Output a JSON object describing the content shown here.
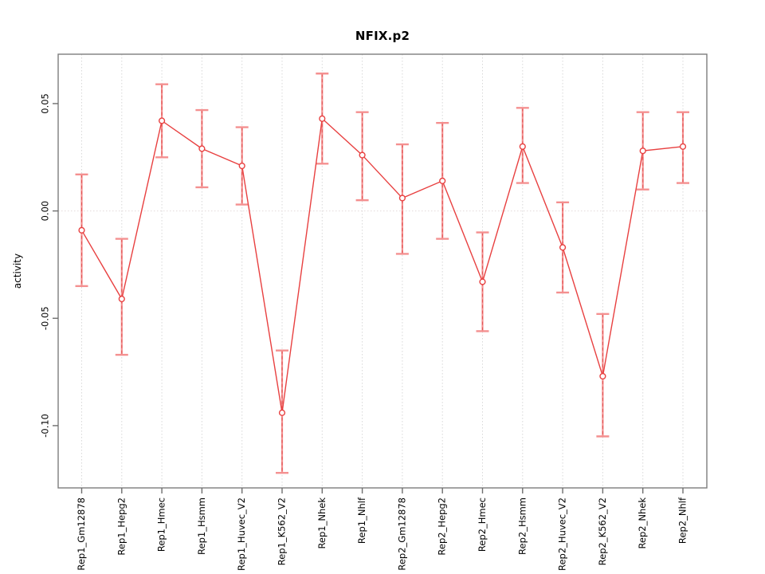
{
  "chart_data": {
    "type": "line",
    "title": "NFIX.p2",
    "ylabel": "activity",
    "xlabel": "",
    "legend": "none",
    "grid": "vertical dotted gridline at each category; dotted horizontal line at y=0",
    "marker": "open-circle",
    "error_bars": true,
    "categories": [
      "Rep1_Gm12878",
      "Rep1_Hepg2",
      "Rep1_Hmec",
      "Rep1_Hsmm",
      "Rep1_Huvec_V2",
      "Rep1_K562_V2",
      "Rep1_Nhek",
      "Rep1_Nhlf",
      "Rep2_Gm12878",
      "Rep2_Hepg2",
      "Rep2_Hmec",
      "Rep2_Hsmm",
      "Rep2_Huvec_V2",
      "Rep2_K562_V2",
      "Rep2_Nhek",
      "Rep2_Nhlf"
    ],
    "series": [
      {
        "name": "activity",
        "values": [
          -0.009,
          -0.041,
          0.042,
          0.029,
          0.021,
          -0.094,
          0.043,
          0.026,
          0.006,
          0.014,
          -0.033,
          0.03,
          -0.017,
          -0.077,
          0.028,
          0.03
        ],
        "error_low": [
          -0.035,
          -0.067,
          0.025,
          0.011,
          0.003,
          -0.122,
          0.022,
          0.005,
          -0.02,
          -0.013,
          -0.056,
          0.013,
          -0.038,
          -0.105,
          0.01,
          0.013
        ],
        "error_high": [
          0.017,
          -0.013,
          0.059,
          0.047,
          0.039,
          -0.065,
          0.064,
          0.046,
          0.031,
          0.041,
          -0.01,
          0.048,
          0.004,
          -0.048,
          0.046,
          0.046
        ]
      }
    ],
    "y_ticks": [
      0.05,
      0.0,
      -0.05,
      -0.1
    ],
    "y_tick_labels": [
      "0.05",
      "0.00",
      "-0.05",
      "-0.10"
    ],
    "ylim": [
      -0.129,
      0.073
    ],
    "colors": {
      "line": "#e84040",
      "marker_stroke": "#e84040",
      "marker_fill": "#ffffff",
      "error_bar": "#f49090",
      "error_bar_dash": "#e25555",
      "grid": "#d8d8d8",
      "zero_line": "#e3dada",
      "axis_box": "#7d7d7d",
      "tick": "#6e6e6e",
      "text": "#000000",
      "background": "#ffffff"
    }
  }
}
